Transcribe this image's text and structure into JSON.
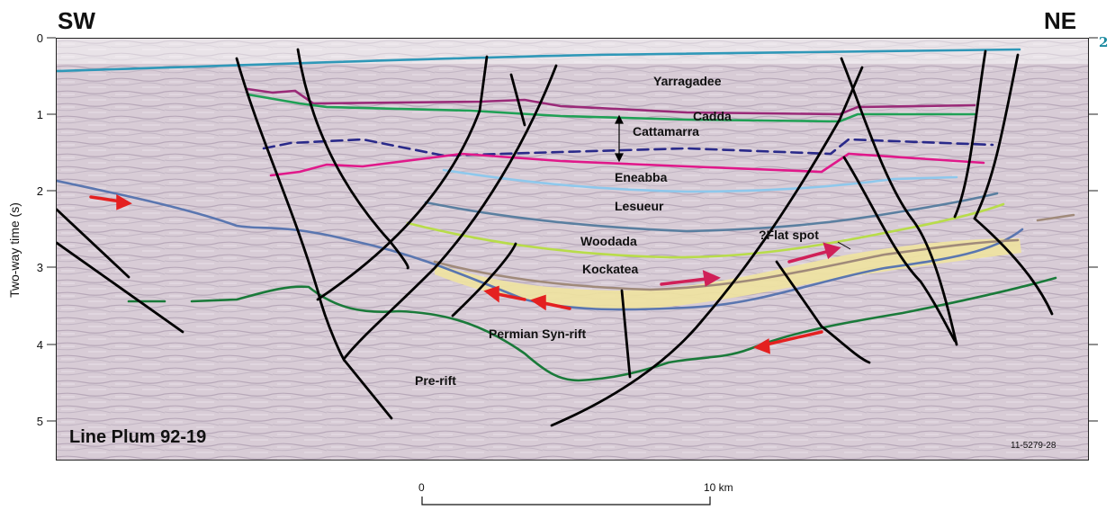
{
  "header": {
    "left_direction": "SW",
    "right_direction": "NE",
    "page_number": "2"
  },
  "axis": {
    "label": "Two-way time (s)",
    "ticks": [
      "0",
      "1",
      "2",
      "3",
      "4",
      "5"
    ]
  },
  "section": {
    "line_title": "Line  Plum 92-19",
    "figure_code": "11-5279-28",
    "units": [
      "Yarragadee",
      "Cadda",
      "Cattamarra",
      "Eneabba",
      "Lesueur",
      "Woodada",
      "Kockatea",
      "Permian Syn-rift",
      "Pre-rift"
    ],
    "annotation": "?Flat spot"
  },
  "scale_bar": {
    "start": "0",
    "end": "10 km"
  },
  "colors": {
    "horizon_top": "#2f98b8",
    "yarragadee_base": "#9a2a78",
    "cadda": "#1fa055",
    "cattamarra": "#2a2a8a",
    "eneabba": "#e0188a",
    "lesueur": "#8ec8ec",
    "woodada": "#5a7fa0",
    "kockatea": "#b8dc4a",
    "permian_top": "#5a76b0",
    "pre_rift": "#1a7a3a",
    "faults": "#000000",
    "arrows": "#e42020",
    "flat_spot_fill": "#efe3a0"
  }
}
